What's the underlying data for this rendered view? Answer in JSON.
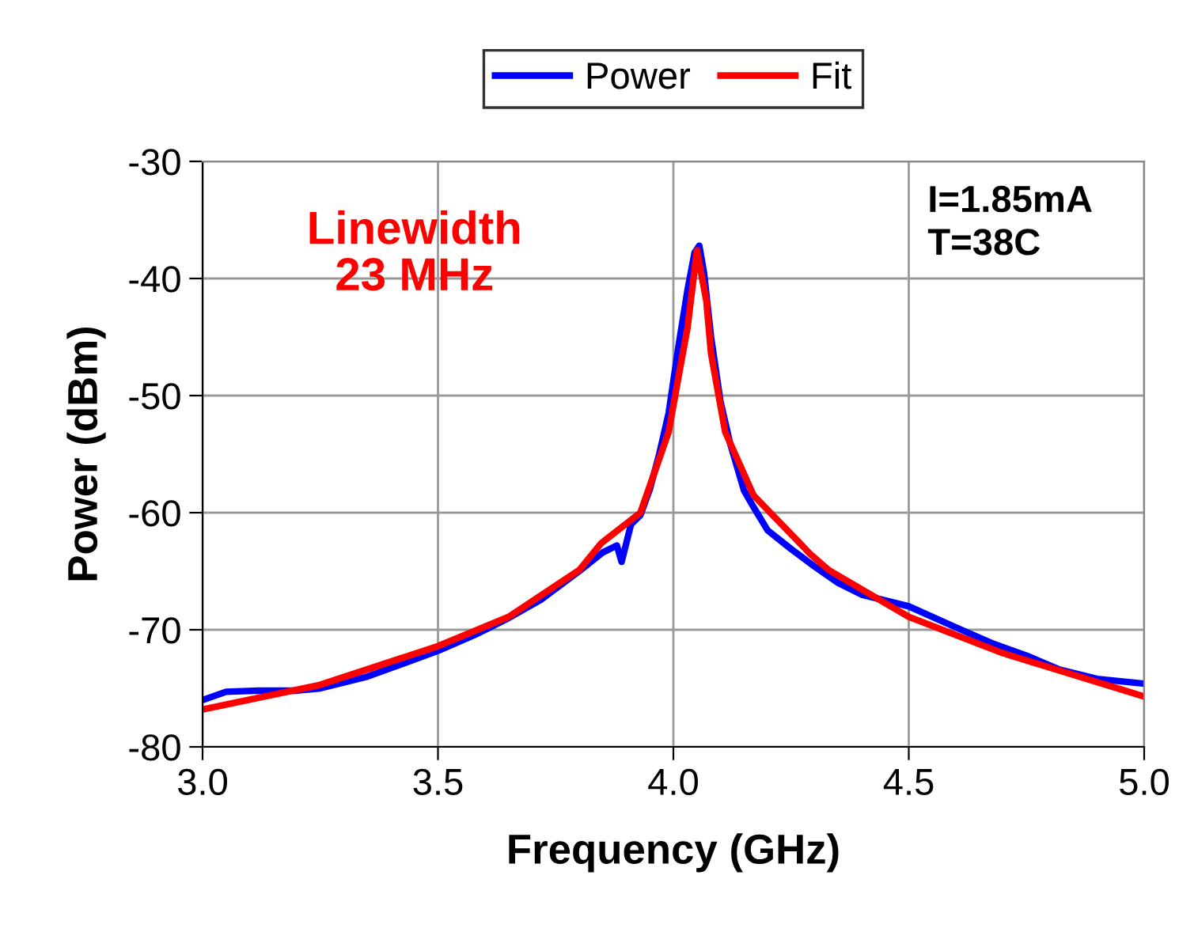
{
  "chart_data": {
    "type": "line",
    "xlabel": "Frequency (GHz)",
    "ylabel": "Power (dBm)",
    "xlim": [
      3.0,
      5.0
    ],
    "xticks": [
      {
        "value": 3.0,
        "label": "3.0"
      },
      {
        "value": 3.5,
        "label": "3.5"
      },
      {
        "value": 4.0,
        "label": "4.0"
      },
      {
        "value": 4.5,
        "label": "4.5"
      },
      {
        "value": 5.0,
        "label": "5.0"
      }
    ],
    "ylim": [
      -80,
      -30
    ],
    "yticks": [
      -80,
      -70,
      -60,
      -50,
      -40,
      -30
    ],
    "grid": true,
    "legend": "top",
    "line_style": "solid",
    "marker": "none",
    "annotations": [
      "Linewidth\n23 MHz",
      "I=1.85mA\nT=38C"
    ],
    "series": [
      {
        "name": "Power",
        "color": "#0000ff",
        "x": [
          3.0,
          3.05,
          3.12,
          3.2,
          3.25,
          3.35,
          3.5,
          3.58,
          3.65,
          3.72,
          3.8,
          3.85,
          3.88,
          3.89,
          3.91,
          3.93,
          3.95,
          3.97,
          3.99,
          4.01,
          4.03,
          4.045,
          4.055,
          4.065,
          4.08,
          4.1,
          4.12,
          4.15,
          4.17,
          4.2,
          4.25,
          4.3,
          4.35,
          4.4,
          4.5,
          4.6,
          4.68,
          4.75,
          4.82,
          4.9,
          5.0
        ],
        "values": [
          -76.0,
          -75.3,
          -75.2,
          -75.2,
          -75.0,
          -74.0,
          -71.8,
          -70.4,
          -69.0,
          -67.4,
          -65.0,
          -63.4,
          -62.8,
          -64.2,
          -61.0,
          -60.2,
          -58.0,
          -55.0,
          -51.5,
          -46.0,
          -41.0,
          -37.8,
          -37.2,
          -39.5,
          -45.0,
          -50.5,
          -54.0,
          -58.1,
          -59.5,
          -61.5,
          -63.1,
          -64.6,
          -66.0,
          -67.0,
          -68.0,
          -69.8,
          -71.2,
          -72.2,
          -73.4,
          -74.2,
          -74.6
        ]
      },
      {
        "name": "Fit",
        "color": "#ff0000",
        "x": [
          3.0,
          3.25,
          3.5,
          3.65,
          3.8,
          3.847,
          3.93,
          3.99,
          4.01,
          4.03,
          4.05,
          4.07,
          4.08,
          4.11,
          4.17,
          4.29,
          4.33,
          4.5,
          4.7,
          5.0
        ],
        "values": [
          -76.8,
          -74.7,
          -71.4,
          -68.9,
          -64.9,
          -62.6,
          -60.0,
          -53.1,
          -48.6,
          -44.2,
          -37.6,
          -41.9,
          -46.4,
          -53.1,
          -58.5,
          -63.5,
          -64.9,
          -68.9,
          -72.0,
          -75.7
        ]
      }
    ]
  }
}
